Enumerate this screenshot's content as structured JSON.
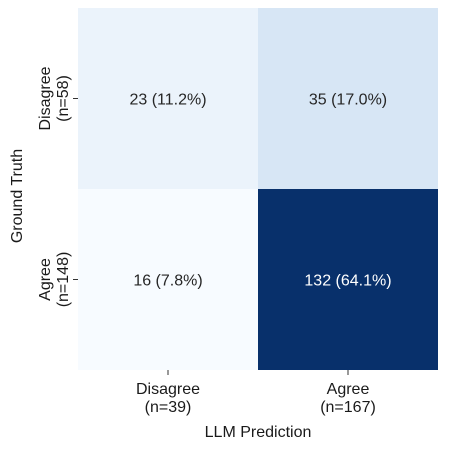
{
  "chart_data": {
    "type": "heatmap",
    "xlabel": "LLM Prediction",
    "ylabel": "Ground Truth",
    "x_categories": [
      {
        "name": "Disagree",
        "count_label": "(n=39)"
      },
      {
        "name": "Agree",
        "count_label": "(n=167)"
      }
    ],
    "y_categories": [
      {
        "name": "Disagree",
        "count_label": "(n=58)"
      },
      {
        "name": "Agree",
        "count_label": "(n=148)"
      }
    ],
    "matrix": [
      [
        23,
        35
      ],
      [
        16,
        132
      ]
    ],
    "cell_labels": [
      [
        "23 (11.2%)",
        "35 (17.0%)"
      ],
      [
        "16 (7.8%)",
        "132 (64.1%)"
      ]
    ],
    "colormap": "Blues",
    "colors": {
      "low": "#f7fbff",
      "high": "#08306b",
      "text_dark": "#262626",
      "text_light": "#ffffff"
    },
    "grid": false,
    "legend": "none"
  }
}
